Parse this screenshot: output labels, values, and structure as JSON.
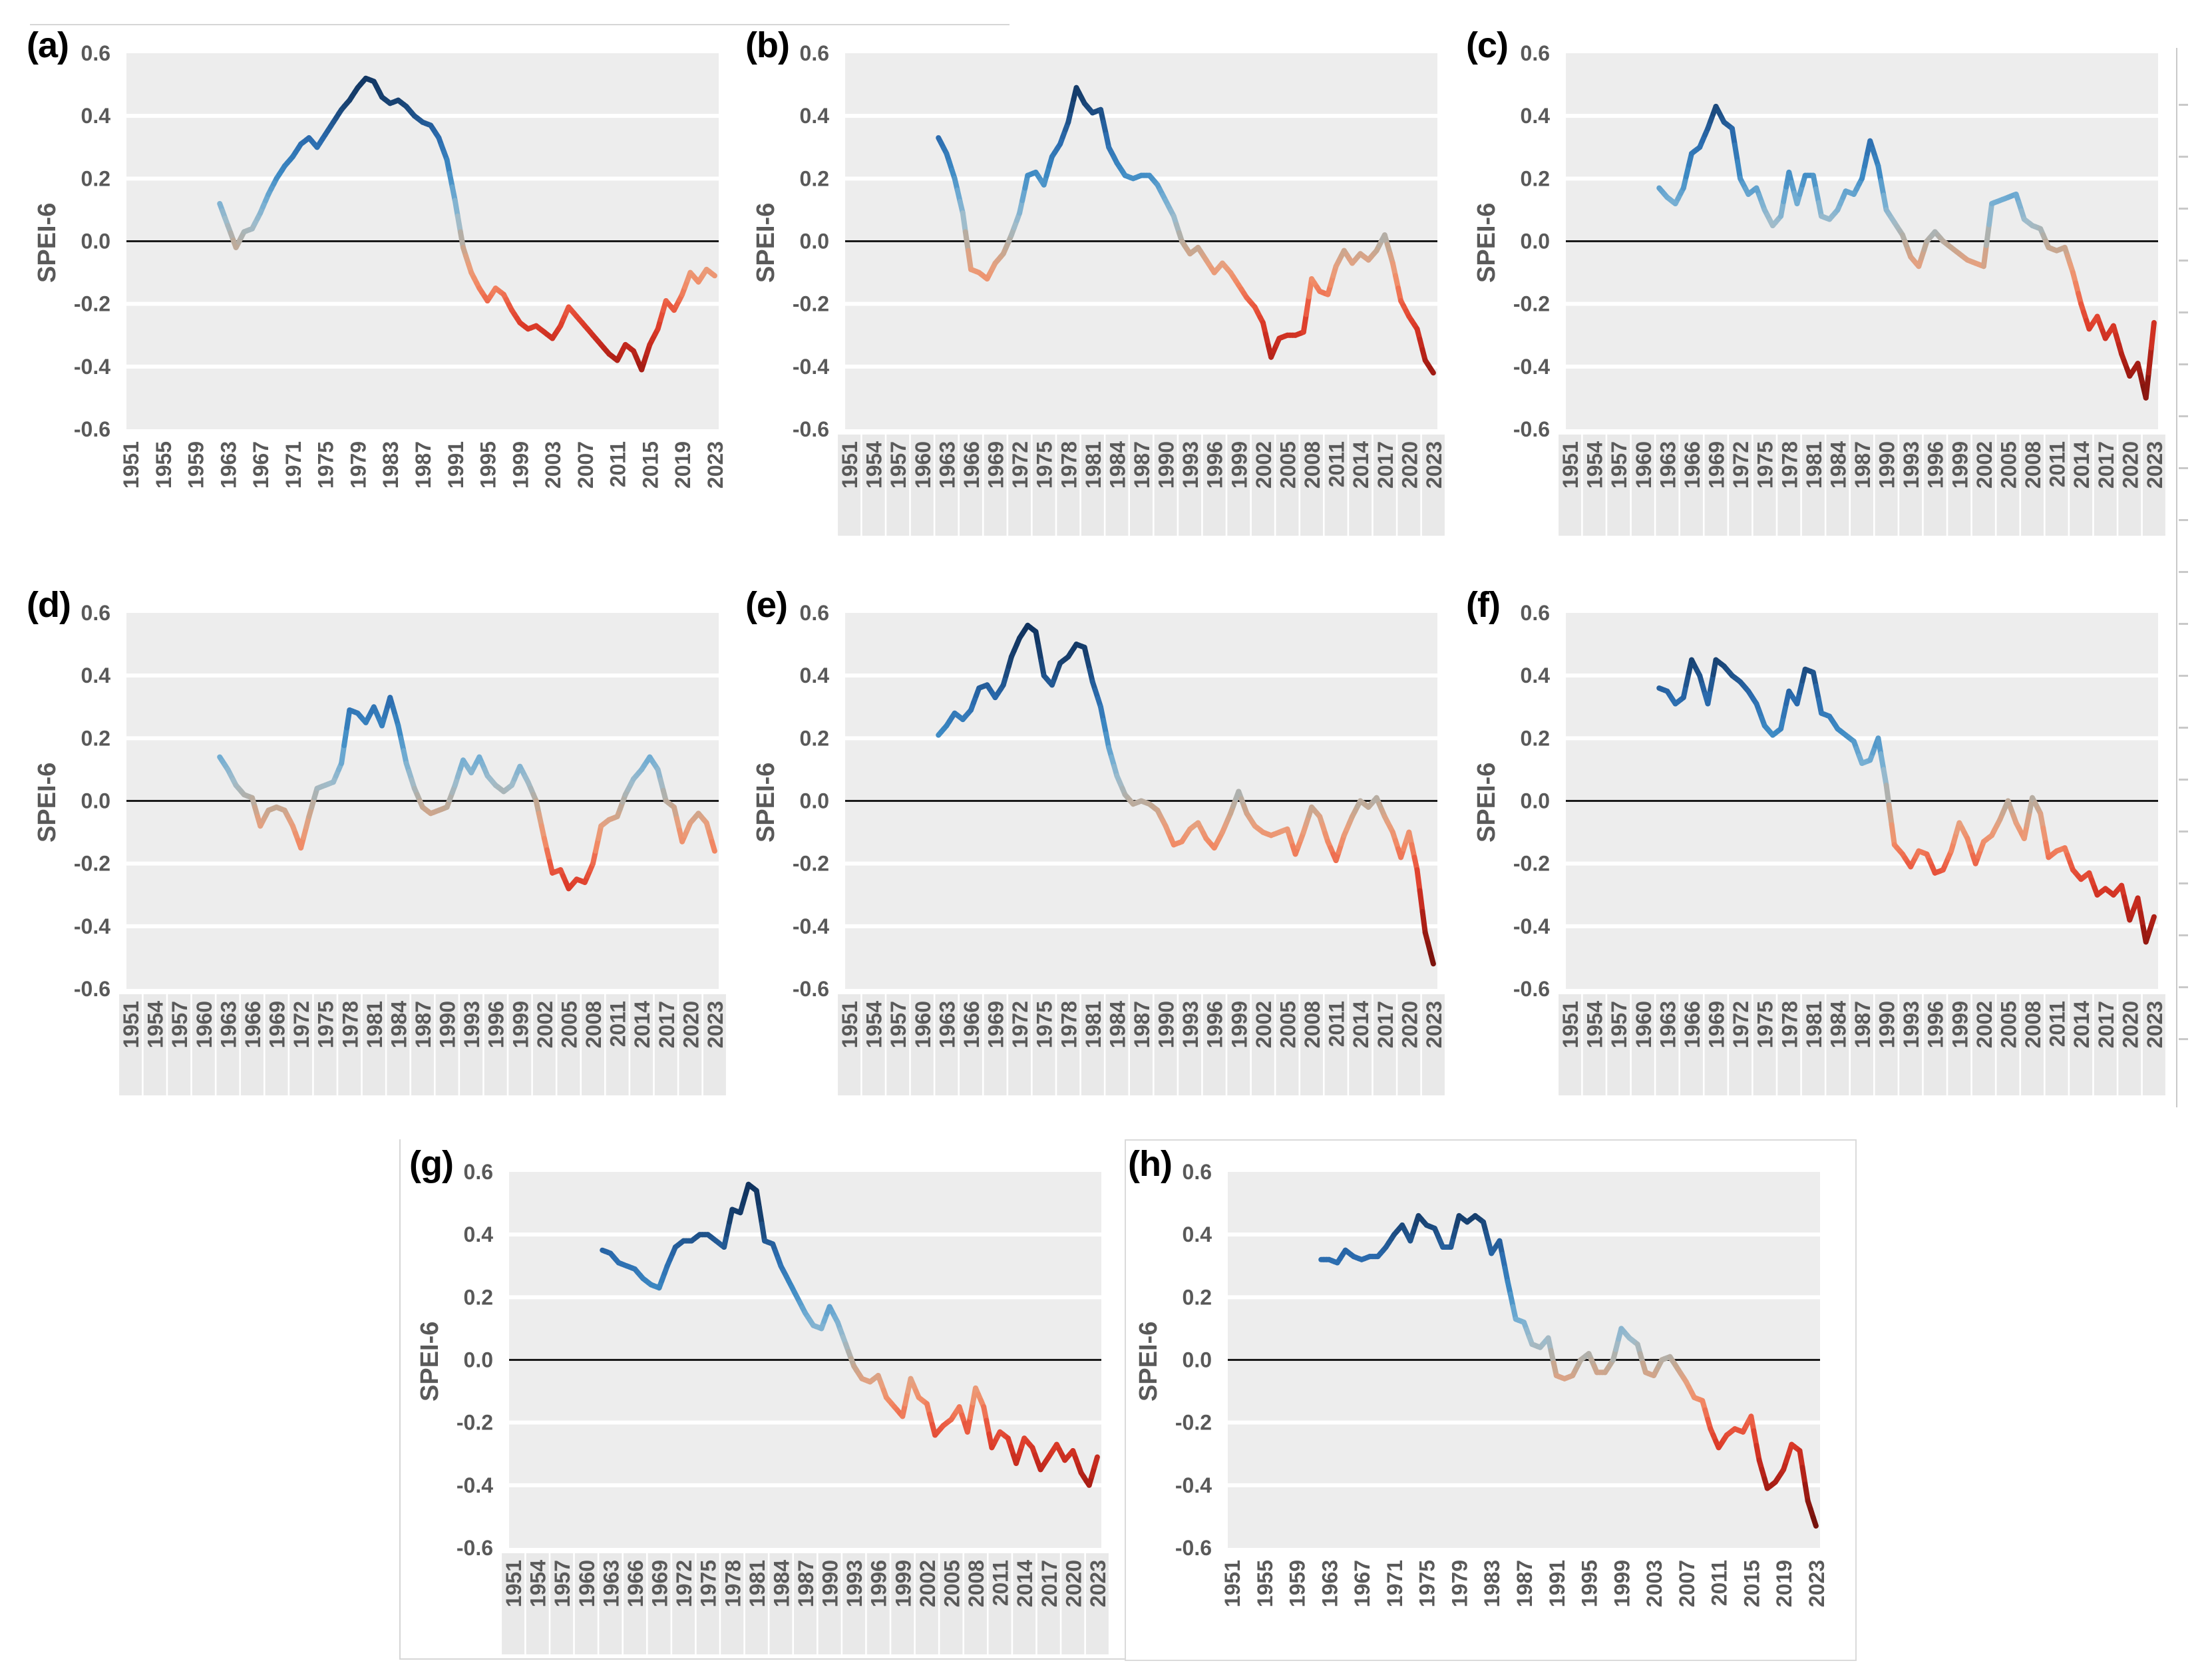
{
  "figure": {
    "y_axis_title": "SPEI-6",
    "y_ticks": [
      "0.6",
      "0.4",
      "0.2",
      "0.0",
      "-0.2",
      "-0.4",
      "-0.6"
    ],
    "y_tick_values": [
      0.6,
      0.4,
      0.2,
      0.0,
      -0.2,
      -0.4,
      -0.6
    ],
    "ylim": [
      -0.6,
      0.6
    ],
    "x_range": [
      1951,
      2023
    ],
    "grid": "on",
    "legend": "none"
  },
  "colors": {
    "plot_bg": "#EDEDED",
    "grid": "#FFFFFF",
    "zero_line": "#1A1A1A",
    "tick_text": "#595959",
    "panel_letter": "#000000",
    "frame": "#D6D6D6",
    "x_band": "#E9E9E9"
  },
  "colormap": [
    [
      0.55,
      "#10335F"
    ],
    [
      0.45,
      "#17406F"
    ],
    [
      0.33,
      "#2A6AAD"
    ],
    [
      0.22,
      "#3D8AC4"
    ],
    [
      0.13,
      "#74AED3"
    ],
    [
      0.06,
      "#9FBCCB"
    ],
    [
      0.01,
      "#B2AFA8"
    ],
    [
      -0.02,
      "#C3A893"
    ],
    [
      -0.08,
      "#E8A07E"
    ],
    [
      -0.14,
      "#F18A65"
    ],
    [
      -0.2,
      "#EC5F45"
    ],
    [
      -0.27,
      "#DC3B29"
    ],
    [
      -0.34,
      "#C0271C"
    ],
    [
      -0.42,
      "#9D1A12"
    ],
    [
      -0.52,
      "#75120C"
    ]
  ],
  "chart_data": [
    {
      "type": "line",
      "label": "(a)",
      "ylabel": "SPEI-6",
      "ylim": [
        -0.6,
        0.6
      ],
      "start_year": 1962,
      "x_label_band": false,
      "x_ticks": [
        "1951",
        "1955",
        "1959",
        "1963",
        "1967",
        "1971",
        "1975",
        "1979",
        "1983",
        "1987",
        "1991",
        "1995",
        "1999",
        "2003",
        "2007",
        "2011",
        "2015",
        "2019",
        "2023"
      ],
      "values": [
        0.12,
        0.05,
        -0.02,
        0.03,
        0.04,
        0.09,
        0.15,
        0.2,
        0.24,
        0.27,
        0.31,
        0.33,
        0.3,
        0.34,
        0.38,
        0.42,
        0.45,
        0.49,
        0.52,
        0.51,
        0.46,
        0.44,
        0.45,
        0.43,
        0.4,
        0.38,
        0.37,
        0.33,
        0.26,
        0.13,
        -0.02,
        -0.1,
        -0.15,
        -0.19,
        -0.15,
        -0.17,
        -0.22,
        -0.26,
        -0.28,
        -0.27,
        -0.29,
        -0.31,
        -0.27,
        -0.21,
        -0.24,
        -0.27,
        -0.3,
        -0.33,
        -0.36,
        -0.38,
        -0.33,
        -0.35,
        -0.41,
        -0.33,
        -0.28,
        -0.19,
        -0.22,
        -0.17,
        -0.1,
        -0.13,
        -0.09,
        -0.11
      ]
    },
    {
      "type": "line",
      "label": "(b)",
      "ylabel": "SPEI-6",
      "ylim": [
        -0.6,
        0.6
      ],
      "start_year": 1962,
      "x_label_band": true,
      "x_ticks": [
        "1951",
        "1954",
        "1957",
        "1960",
        "1963",
        "1966",
        "1969",
        "1972",
        "1975",
        "1978",
        "1981",
        "1984",
        "1987",
        "1990",
        "1993",
        "1996",
        "1999",
        "2002",
        "2005",
        "2008",
        "2011",
        "2014",
        "2017",
        "2020",
        "2023"
      ],
      "values": [
        0.33,
        0.28,
        0.2,
        0.09,
        -0.09,
        -0.1,
        -0.12,
        -0.07,
        -0.04,
        0.02,
        0.09,
        0.21,
        0.22,
        0.18,
        0.27,
        0.31,
        0.38,
        0.49,
        0.44,
        0.41,
        0.42,
        0.3,
        0.25,
        0.21,
        0.2,
        0.21,
        0.21,
        0.18,
        0.13,
        0.08,
        0.0,
        -0.04,
        -0.02,
        -0.06,
        -0.1,
        -0.07,
        -0.1,
        -0.14,
        -0.18,
        -0.21,
        -0.26,
        -0.37,
        -0.31,
        -0.3,
        -0.3,
        -0.29,
        -0.12,
        -0.16,
        -0.17,
        -0.08,
        -0.03,
        -0.07,
        -0.04,
        -0.06,
        -0.03,
        0.02,
        -0.07,
        -0.19,
        -0.24,
        -0.28,
        -0.38,
        -0.42
      ]
    },
    {
      "type": "line",
      "label": "(c)",
      "ylabel": "SPEI-6",
      "ylim": [
        -0.6,
        0.6
      ],
      "start_year": 1962,
      "x_label_band": true,
      "x_ticks": [
        "1951",
        "1954",
        "1957",
        "1960",
        "1963",
        "1966",
        "1969",
        "1972",
        "1975",
        "1978",
        "1981",
        "1984",
        "1987",
        "1990",
        "1993",
        "1996",
        "1999",
        "2002",
        "2005",
        "2008",
        "2011",
        "2014",
        "2017",
        "2020",
        "2023"
      ],
      "values": [
        0.17,
        0.14,
        0.12,
        0.17,
        0.28,
        0.3,
        0.36,
        0.43,
        0.38,
        0.36,
        0.2,
        0.15,
        0.17,
        0.1,
        0.05,
        0.08,
        0.22,
        0.12,
        0.21,
        0.21,
        0.08,
        0.07,
        0.1,
        0.16,
        0.15,
        0.2,
        0.32,
        0.24,
        0.1,
        0.06,
        0.02,
        -0.05,
        -0.08,
        0.0,
        0.03,
        0.0,
        -0.02,
        -0.04,
        -0.06,
        -0.07,
        -0.08,
        0.12,
        0.13,
        0.14,
        0.15,
        0.07,
        0.05,
        0.04,
        -0.02,
        -0.03,
        -0.02,
        -0.1,
        -0.2,
        -0.28,
        -0.24,
        -0.31,
        -0.27,
        -0.36,
        -0.43,
        -0.39,
        -0.5,
        -0.26
      ]
    },
    {
      "type": "line",
      "label": "(d)",
      "ylabel": "SPEI-6",
      "ylim": [
        -0.6,
        0.6
      ],
      "start_year": 1962,
      "x_label_band": true,
      "x_ticks": [
        "1951",
        "1954",
        "1957",
        "1960",
        "1963",
        "1966",
        "1969",
        "1972",
        "1975",
        "1978",
        "1981",
        "1984",
        "1987",
        "1990",
        "1993",
        "1996",
        "1999",
        "2002",
        "2005",
        "2008",
        "2011",
        "2014",
        "2017",
        "2020",
        "2023"
      ],
      "values": [
        0.14,
        0.1,
        0.05,
        0.02,
        0.01,
        -0.08,
        -0.03,
        -0.02,
        -0.03,
        -0.08,
        -0.15,
        -0.05,
        0.04,
        0.05,
        0.06,
        0.12,
        0.29,
        0.28,
        0.25,
        0.3,
        0.24,
        0.33,
        0.24,
        0.12,
        0.04,
        -0.02,
        -0.04,
        -0.03,
        -0.02,
        0.05,
        0.13,
        0.09,
        0.14,
        0.08,
        0.05,
        0.03,
        0.05,
        0.11,
        0.06,
        0.0,
        -0.12,
        -0.23,
        -0.22,
        -0.28,
        -0.25,
        -0.26,
        -0.2,
        -0.08,
        -0.06,
        -0.05,
        0.02,
        0.07,
        0.1,
        0.14,
        0.1,
        0.0,
        -0.02,
        -0.13,
        -0.07,
        -0.04,
        -0.07,
        -0.16
      ]
    },
    {
      "type": "line",
      "label": "(e)",
      "ylabel": "SPEI-6",
      "ylim": [
        -0.6,
        0.6
      ],
      "start_year": 1962,
      "x_label_band": true,
      "x_ticks": [
        "1951",
        "1954",
        "1957",
        "1960",
        "1963",
        "1966",
        "1969",
        "1972",
        "1975",
        "1978",
        "1981",
        "1984",
        "1987",
        "1990",
        "1993",
        "1996",
        "1999",
        "2002",
        "2005",
        "2008",
        "2011",
        "2014",
        "2017",
        "2020",
        "2023"
      ],
      "values": [
        0.21,
        0.24,
        0.28,
        0.26,
        0.29,
        0.36,
        0.37,
        0.33,
        0.37,
        0.46,
        0.52,
        0.56,
        0.54,
        0.4,
        0.37,
        0.44,
        0.46,
        0.5,
        0.49,
        0.38,
        0.3,
        0.17,
        0.08,
        0.02,
        -0.01,
        0.0,
        -0.01,
        -0.03,
        -0.08,
        -0.14,
        -0.13,
        -0.09,
        -0.07,
        -0.12,
        -0.15,
        -0.1,
        -0.04,
        0.03,
        -0.04,
        -0.08,
        -0.1,
        -0.11,
        -0.1,
        -0.09,
        -0.17,
        -0.1,
        -0.02,
        -0.05,
        -0.13,
        -0.19,
        -0.11,
        -0.05,
        0.0,
        -0.02,
        0.01,
        -0.05,
        -0.1,
        -0.18,
        -0.1,
        -0.22,
        -0.42,
        -0.52
      ]
    },
    {
      "type": "line",
      "label": "(f)",
      "ylabel": "SPEI-6",
      "ylim": [
        -0.6,
        0.6
      ],
      "start_year": 1962,
      "x_label_band": true,
      "x_ticks": [
        "1951",
        "1954",
        "1957",
        "1960",
        "1963",
        "1966",
        "1969",
        "1972",
        "1975",
        "1978",
        "1981",
        "1984",
        "1987",
        "1990",
        "1993",
        "1996",
        "1999",
        "2002",
        "2005",
        "2008",
        "2011",
        "2014",
        "2017",
        "2020",
        "2023"
      ],
      "values": [
        0.36,
        0.35,
        0.31,
        0.33,
        0.45,
        0.4,
        0.31,
        0.45,
        0.43,
        0.4,
        0.38,
        0.35,
        0.31,
        0.24,
        0.21,
        0.23,
        0.35,
        0.31,
        0.42,
        0.41,
        0.28,
        0.27,
        0.23,
        0.21,
        0.19,
        0.12,
        0.13,
        0.2,
        0.05,
        -0.14,
        -0.17,
        -0.21,
        -0.16,
        -0.17,
        -0.23,
        -0.22,
        -0.16,
        -0.07,
        -0.12,
        -0.2,
        -0.13,
        -0.11,
        -0.06,
        0.0,
        -0.07,
        -0.12,
        0.01,
        -0.04,
        -0.18,
        -0.16,
        -0.15,
        -0.22,
        -0.25,
        -0.23,
        -0.3,
        -0.28,
        -0.3,
        -0.27,
        -0.38,
        -0.31,
        -0.45,
        -0.37
      ]
    },
    {
      "type": "line",
      "label": "(g)",
      "ylabel": "SPEI-6",
      "ylim": [
        -0.6,
        0.6
      ],
      "start_year": 1962,
      "x_label_band": true,
      "x_ticks": [
        "1951",
        "1954",
        "1957",
        "1960",
        "1963",
        "1966",
        "1969",
        "1972",
        "1975",
        "1978",
        "1981",
        "1984",
        "1987",
        "1990",
        "1993",
        "1996",
        "1999",
        "2002",
        "2005",
        "2008",
        "2011",
        "2014",
        "2017",
        "2020",
        "2023"
      ],
      "values": [
        0.35,
        0.34,
        0.31,
        0.3,
        0.29,
        0.26,
        0.24,
        0.23,
        0.3,
        0.36,
        0.38,
        0.38,
        0.4,
        0.4,
        0.38,
        0.36,
        0.48,
        0.47,
        0.56,
        0.54,
        0.38,
        0.37,
        0.3,
        0.25,
        0.2,
        0.15,
        0.11,
        0.1,
        0.17,
        0.12,
        0.05,
        -0.02,
        -0.06,
        -0.07,
        -0.05,
        -0.12,
        -0.15,
        -0.18,
        -0.06,
        -0.12,
        -0.14,
        -0.24,
        -0.21,
        -0.19,
        -0.15,
        -0.23,
        -0.09,
        -0.15,
        -0.28,
        -0.23,
        -0.25,
        -0.33,
        -0.25,
        -0.28,
        -0.35,
        -0.31,
        -0.27,
        -0.32,
        -0.29,
        -0.36,
        -0.4,
        -0.31
      ]
    },
    {
      "type": "line",
      "label": "(h)",
      "ylabel": "SPEI-6",
      "ylim": [
        -0.6,
        0.6
      ],
      "start_year": 1962,
      "x_label_band": false,
      "x_ticks": [
        "1951",
        "1955",
        "1959",
        "1963",
        "1967",
        "1971",
        "1975",
        "1979",
        "1983",
        "1987",
        "1991",
        "1995",
        "1999",
        "2003",
        "2007",
        "2011",
        "2015",
        "2019",
        "2023"
      ],
      "values": [
        0.32,
        0.32,
        0.31,
        0.35,
        0.33,
        0.32,
        0.33,
        0.33,
        0.36,
        0.4,
        0.43,
        0.38,
        0.46,
        0.43,
        0.42,
        0.36,
        0.36,
        0.46,
        0.44,
        0.46,
        0.44,
        0.34,
        0.38,
        0.25,
        0.13,
        0.12,
        0.05,
        0.04,
        0.07,
        -0.05,
        -0.06,
        -0.05,
        0.0,
        0.02,
        -0.04,
        -0.04,
        0.0,
        0.1,
        0.07,
        0.05,
        -0.04,
        -0.05,
        0.0,
        0.01,
        -0.03,
        -0.07,
        -0.12,
        -0.13,
        -0.22,
        -0.28,
        -0.24,
        -0.22,
        -0.23,
        -0.18,
        -0.32,
        -0.41,
        -0.39,
        -0.35,
        -0.27,
        -0.29,
        -0.45,
        -0.53
      ]
    }
  ]
}
